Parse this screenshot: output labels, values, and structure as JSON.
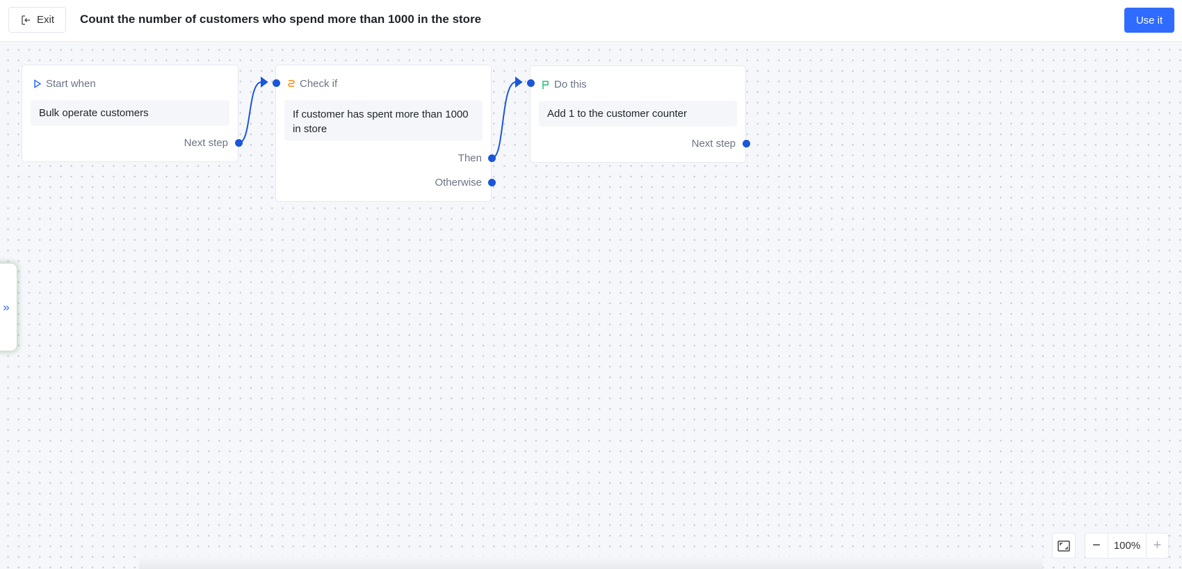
{
  "header": {
    "exit_label": "Exit",
    "title": "Count the number of customers who spend more than 1000 in the store",
    "use_label": "Use it"
  },
  "colors": {
    "accent": "#2f6bff",
    "port": "#1a56db",
    "check_icon": "#ff9a1f",
    "flag_icon": "#3cc48a"
  },
  "nodes": [
    {
      "type_label": "Start when",
      "icon": "play-outline-icon",
      "content": "Bulk operate customers",
      "ports": [
        "Next step"
      ]
    },
    {
      "type_label": "Check if",
      "icon": "branch-icon",
      "content": "If customer has spent more than 1000 in store",
      "ports": [
        "Then",
        "Otherwise"
      ]
    },
    {
      "type_label": "Do this",
      "icon": "flag-icon",
      "content": "Add 1 to the customer counter",
      "ports": [
        "Next step"
      ]
    }
  ],
  "side_panel": {
    "icon": "double-chevron-right-icon"
  },
  "controls": {
    "fit_icon": "fit-screen-icon",
    "zoom_level": "100%",
    "zoom_out": "−",
    "zoom_in": "+"
  }
}
